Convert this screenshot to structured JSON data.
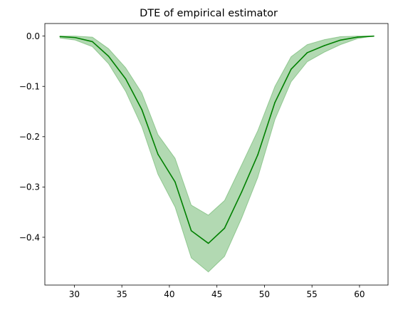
{
  "chart_data": {
    "type": "line",
    "title": "DTE of empirical estimator",
    "xlabel": "",
    "ylabel": "",
    "xlim": [
      26.9,
      63.0
    ],
    "ylim": [
      -0.495,
      0.025
    ],
    "grid": false,
    "legend": "none",
    "xticks": [
      30,
      35,
      40,
      45,
      50,
      55,
      60
    ],
    "yticks": [
      0.0,
      -0.1,
      -0.2,
      -0.3,
      -0.4
    ],
    "x": [
      28.5,
      30.1,
      31.9,
      33.6,
      35.4,
      37.1,
      38.8,
      40.6,
      42.3,
      44.1,
      45.8,
      47.6,
      49.3,
      51.1,
      52.8,
      54.5,
      56.3,
      58.0,
      59.8,
      61.5
    ],
    "series": [
      {
        "color": "#008000",
        "band_color": "#008000",
        "band_opacity": 0.3,
        "values": [
          -0.001,
          -0.003,
          -0.011,
          -0.04,
          -0.085,
          -0.146,
          -0.235,
          -0.29,
          -0.387,
          -0.412,
          -0.382,
          -0.31,
          -0.236,
          -0.132,
          -0.066,
          -0.033,
          -0.019,
          -0.008,
          -0.002,
          0.0
        ],
        "upper": [
          0.0,
          0.0,
          -0.002,
          -0.025,
          -0.063,
          -0.113,
          -0.196,
          -0.243,
          -0.336,
          -0.356,
          -0.327,
          -0.256,
          -0.188,
          -0.1,
          -0.041,
          -0.017,
          -0.007,
          -0.001,
          0.0,
          0.0
        ],
        "lower": [
          -0.004,
          -0.008,
          -0.021,
          -0.055,
          -0.11,
          -0.18,
          -0.275,
          -0.34,
          -0.441,
          -0.469,
          -0.438,
          -0.362,
          -0.281,
          -0.166,
          -0.091,
          -0.051,
          -0.032,
          -0.017,
          -0.005,
          0.0
        ]
      }
    ]
  }
}
